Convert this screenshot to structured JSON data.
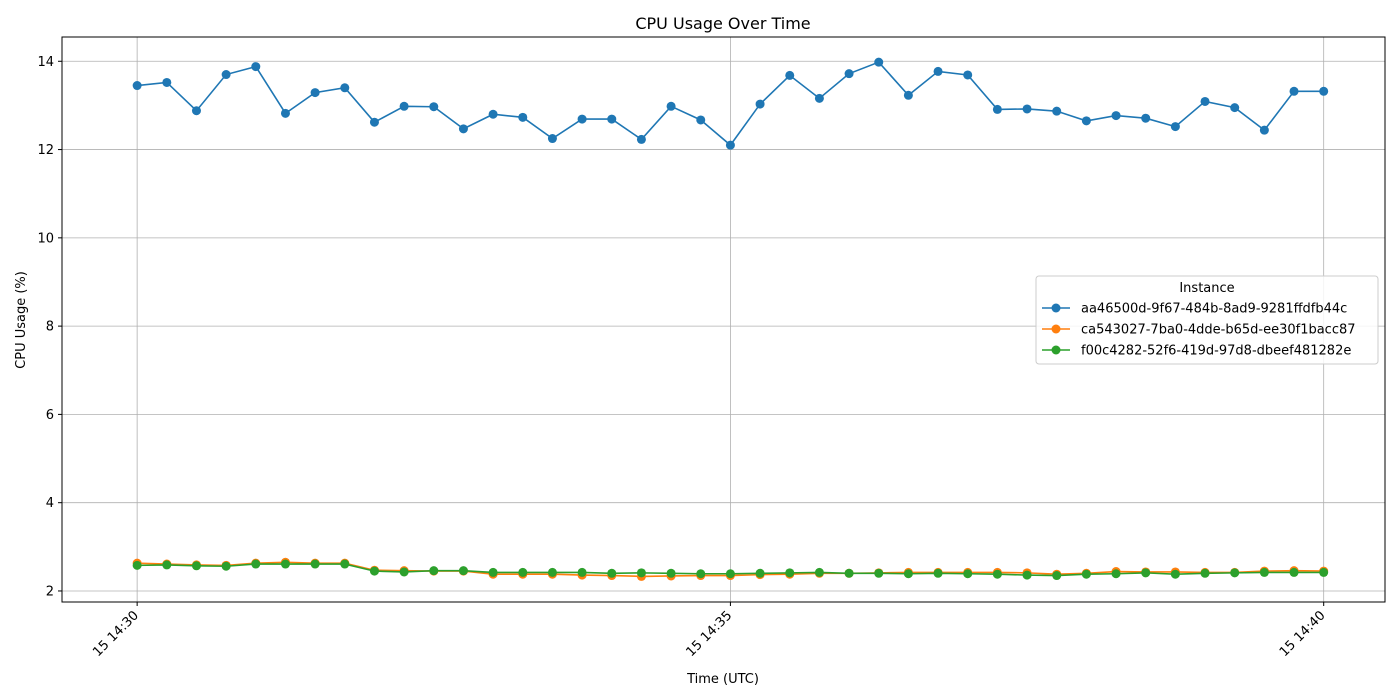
{
  "chart_data": {
    "type": "line",
    "title": "CPU Usage Over Time",
    "xlabel": "Time (UTC)",
    "ylabel": "CPU Usage (%)",
    "x_ticks": [
      "15 14:30",
      "15 14:35",
      "15 14:40"
    ],
    "x_range_minutes": [
      -0.6333,
      10.5167
    ],
    "x_minutes": [
      0.0,
      0.25,
      0.5,
      0.75,
      1.0,
      1.25,
      1.5,
      1.75,
      2.0,
      2.25,
      2.5,
      2.75,
      3.0,
      3.25,
      3.5,
      3.75,
      4.0,
      4.25,
      4.5,
      4.75,
      5.0,
      5.25,
      5.5,
      5.75,
      6.0,
      6.25,
      6.5,
      6.75,
      7.0,
      7.25,
      7.5,
      7.75,
      8.0,
      8.25,
      8.5,
      8.75,
      9.0,
      9.25,
      9.5,
      9.75,
      10.0
    ],
    "ylim": [
      1.75,
      14.55
    ],
    "y_ticks": [
      2,
      4,
      6,
      8,
      10,
      12,
      14
    ],
    "grid": true,
    "legend_title": "Instance",
    "legend_position": "center-right",
    "series": [
      {
        "name": "aa46500d-9f67-484b-8ad9-9281ffdfb44c",
        "color": "#1f77b4",
        "values": [
          13.45,
          13.52,
          12.88,
          13.7,
          13.88,
          12.82,
          13.29,
          13.4,
          12.62,
          12.98,
          12.97,
          12.47,
          12.8,
          12.73,
          12.25,
          12.69,
          12.69,
          12.23,
          12.98,
          12.67,
          12.1,
          13.03,
          13.68,
          13.16,
          13.72,
          13.98,
          13.23,
          13.77,
          13.69,
          12.91,
          12.92,
          12.87,
          12.65,
          12.77,
          12.71,
          12.52,
          13.09,
          12.95,
          12.44,
          13.32,
          13.32
        ]
      },
      {
        "name": "ca543027-7ba0-4dde-b65d-ee30f1bacc87",
        "color": "#ff7f0e",
        "values": [
          2.63,
          2.61,
          2.59,
          2.58,
          2.63,
          2.65,
          2.63,
          2.63,
          2.47,
          2.46,
          2.45,
          2.45,
          2.38,
          2.38,
          2.38,
          2.36,
          2.35,
          2.33,
          2.34,
          2.35,
          2.35,
          2.37,
          2.38,
          2.4,
          2.4,
          2.41,
          2.42,
          2.42,
          2.42,
          2.42,
          2.41,
          2.38,
          2.4,
          2.44,
          2.43,
          2.43,
          2.42,
          2.42,
          2.45,
          2.46,
          2.45
        ]
      },
      {
        "name": "f00c4282-52f6-419d-97d8-dbeef481282e",
        "color": "#2ca02c",
        "values": [
          2.58,
          2.59,
          2.57,
          2.56,
          2.61,
          2.61,
          2.61,
          2.61,
          2.45,
          2.43,
          2.46,
          2.46,
          2.42,
          2.42,
          2.42,
          2.42,
          2.4,
          2.41,
          2.4,
          2.39,
          2.39,
          2.4,
          2.41,
          2.42,
          2.4,
          2.4,
          2.39,
          2.4,
          2.39,
          2.38,
          2.36,
          2.35,
          2.38,
          2.39,
          2.41,
          2.38,
          2.4,
          2.41,
          2.42,
          2.42,
          2.42
        ]
      }
    ]
  }
}
